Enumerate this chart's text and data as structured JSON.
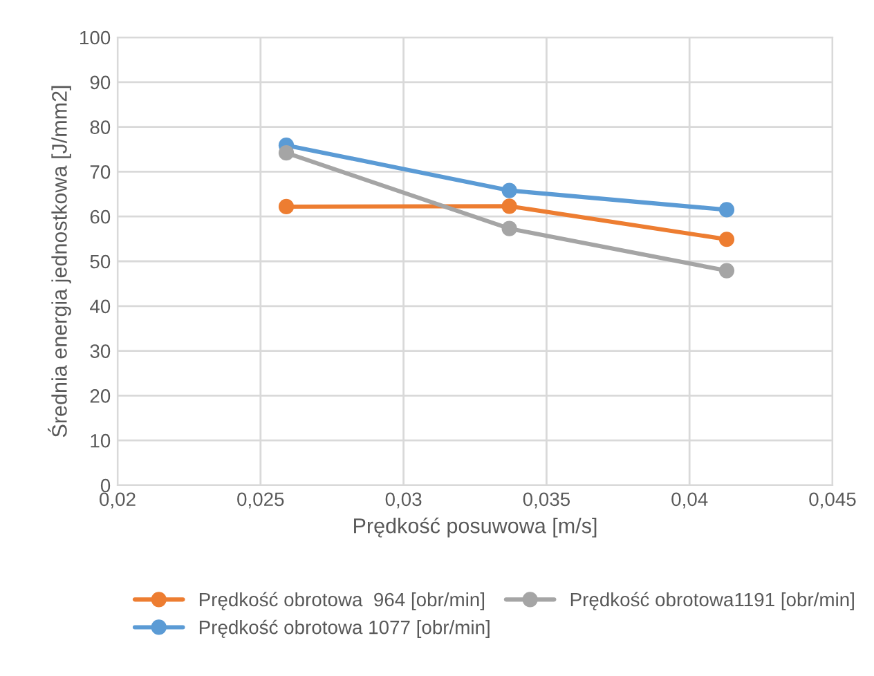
{
  "chart_data": {
    "type": "line",
    "xlabel": "Prędkość posuwowa [m/s]",
    "ylabel": "Średnia energia jednostkowa [J/mm2]",
    "x": [
      0.0259,
      0.0337,
      0.0413
    ],
    "series": [
      {
        "name": "Prędkość obrotowa  964 [obr/min]",
        "color": "#ed7d31",
        "values": [
          62.2,
          62.3,
          54.9
        ]
      },
      {
        "name": "Prędkość obrotowa 1077 [obr/min]",
        "color": "#5b9bd5",
        "values": [
          75.9,
          65.8,
          61.5
        ]
      },
      {
        "name": "Prędkość obrotowa1191 [obr/min]",
        "color": "#a5a5a5",
        "values": [
          74.2,
          57.3,
          47.9
        ]
      }
    ],
    "xlim": [
      0.02,
      0.045
    ],
    "xticks": [
      {
        "value": 0.02,
        "label": "0,02"
      },
      {
        "value": 0.025,
        "label": "0,025"
      },
      {
        "value": 0.03,
        "label": "0,03"
      },
      {
        "value": 0.035,
        "label": "0,035"
      },
      {
        "value": 0.04,
        "label": "0,04"
      },
      {
        "value": 0.045,
        "label": "0,045"
      }
    ],
    "ylim": [
      0,
      100
    ],
    "yticks": [
      0,
      10,
      20,
      30,
      40,
      50,
      60,
      70,
      80,
      90,
      100
    ],
    "grid": true,
    "legend": "bottom",
    "marker": "circle",
    "line_style": "solid"
  }
}
